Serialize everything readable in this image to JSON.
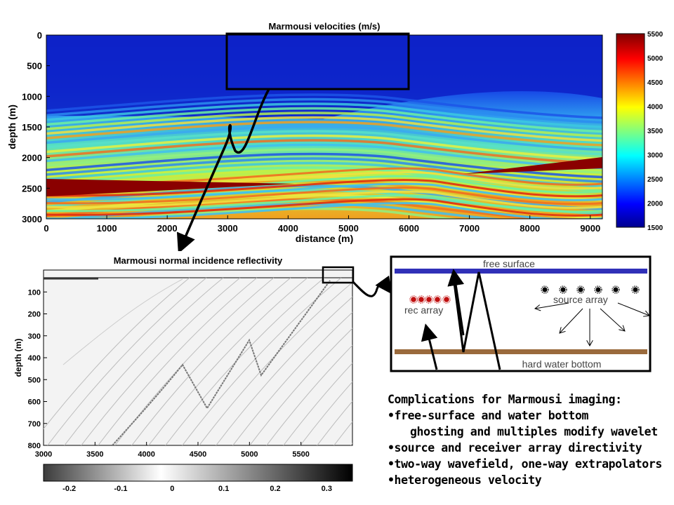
{
  "velocity_panel": {
    "title": "Marmousi velocities (m/s)",
    "xlabel": "distance (m)",
    "ylabel": "depth (m)",
    "xticks": [
      "0",
      "1000",
      "2000",
      "3000",
      "4000",
      "5000",
      "6000",
      "7000",
      "8000",
      "9000"
    ],
    "yticks": [
      "0",
      "500",
      "1000",
      "1500",
      "2000",
      "2500",
      "3000"
    ],
    "colorbar_ticks": [
      "5500",
      "5000",
      "4500",
      "4000",
      "3500",
      "3000",
      "2500",
      "2000",
      "1500"
    ]
  },
  "reflectivity_panel": {
    "title": "Marmousi normal incidence reflectivity",
    "ylabel": "depth (m)",
    "xticks": [
      "3000",
      "3500",
      "4000",
      "4500",
      "5000",
      "5500"
    ],
    "yticks": [
      "100",
      "200",
      "300",
      "400",
      "500",
      "600",
      "700",
      "800"
    ],
    "colorbar_ticks": [
      "-0.2",
      "-0.1",
      "0",
      "0.1",
      "0.2",
      "0.3"
    ]
  },
  "schematic": {
    "free_surface_label": "free surface",
    "rec_array_label": "rec array",
    "source_array_label": "source array",
    "water_bottom_label": "hard water bottom",
    "colors": {
      "free_surface": "#3030b8",
      "water_bottom": "#9a6a3c",
      "receiver": "#c01010"
    }
  },
  "notes": {
    "heading": "Complications for Marmousi imaging:",
    "items": [
      {
        "text": "•free-surface and water bottom",
        "indent": false
      },
      {
        "text": "ghosting and multiples modify wavelet",
        "indent": true
      },
      {
        "text": "•source and receiver array directivity",
        "indent": false
      },
      {
        "text": "•two-way wavefield, one-way extrapolators",
        "indent": false
      },
      {
        "text": "•heterogeneous velocity",
        "indent": false
      }
    ]
  },
  "chart_data": [
    {
      "type": "heatmap",
      "title": "Marmousi velocities (m/s)",
      "xlabel": "distance (m)",
      "ylabel": "depth (m)",
      "xlim": [
        0,
        9200
      ],
      "ylim": [
        3000,
        0
      ],
      "colorbar": {
        "min": 1500,
        "max": 5500,
        "colormap": "jet",
        "ticks": [
          1500,
          2000,
          2500,
          3000,
          3500,
          4000,
          4500,
          5000,
          5500
        ]
      },
      "highlight_box": {
        "x": [
          3000,
          6000
        ],
        "depth": [
          0,
          850
        ]
      }
    },
    {
      "type": "heatmap",
      "title": "Marmousi normal incidence reflectivity",
      "ylabel": "depth (m)",
      "xlim": [
        3000,
        6000
      ],
      "ylim": [
        800,
        0
      ],
      "colorbar": {
        "min": -0.25,
        "max": 0.35,
        "colormap": "gray",
        "ticks": [
          -0.2,
          -0.1,
          0,
          0.1,
          0.2,
          0.3
        ]
      }
    }
  ]
}
